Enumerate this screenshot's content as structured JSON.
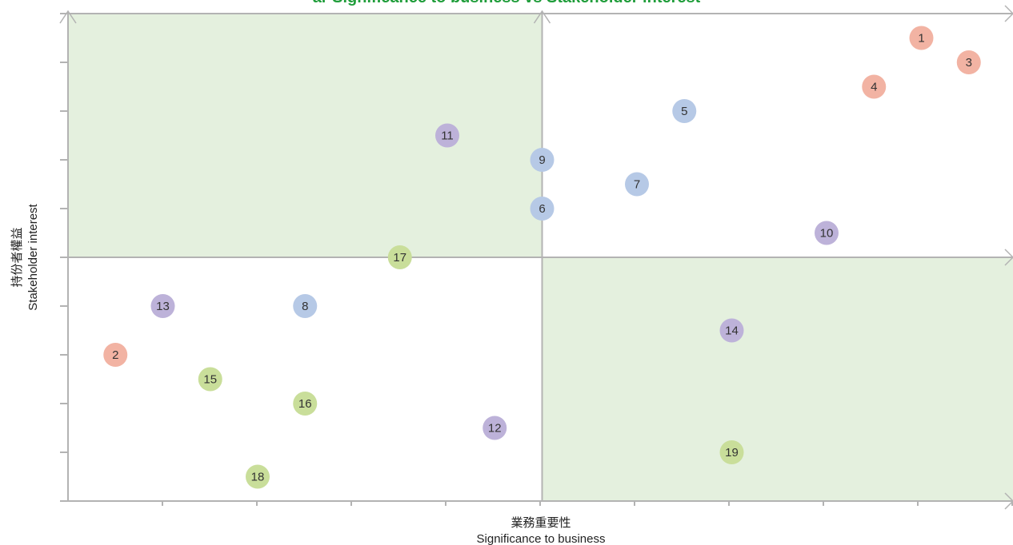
{
  "chart_data": {
    "type": "scatter",
    "title": "ar Significance to business vs Stakeholder interest",
    "xlabel": {
      "zh": "業務重要性",
      "en": "Significance to business"
    },
    "ylabel": {
      "zh": "持份者權益",
      "en": "Stakeholder interest"
    },
    "xlim": [
      0,
      20
    ],
    "ylim": [
      0,
      20
    ],
    "grid": false,
    "quadrant_dividers": {
      "x": 10,
      "y": 10
    },
    "highlighted_quadrants": [
      "top-left",
      "bottom-right"
    ],
    "points": [
      {
        "label": "1",
        "x": 18,
        "y": 19,
        "group": "red"
      },
      {
        "label": "2",
        "x": 1,
        "y": 6,
        "group": "red"
      },
      {
        "label": "3",
        "x": 19,
        "y": 18,
        "group": "red"
      },
      {
        "label": "4",
        "x": 17,
        "y": 17,
        "group": "red"
      },
      {
        "label": "5",
        "x": 13,
        "y": 16,
        "group": "blue"
      },
      {
        "label": "6",
        "x": 10,
        "y": 12,
        "group": "blue"
      },
      {
        "label": "7",
        "x": 12,
        "y": 13,
        "group": "blue"
      },
      {
        "label": "8",
        "x": 5,
        "y": 8,
        "group": "blue"
      },
      {
        "label": "9",
        "x": 10,
        "y": 14,
        "group": "blue"
      },
      {
        "label": "10",
        "x": 16,
        "y": 11,
        "group": "purple"
      },
      {
        "label": "11",
        "x": 8,
        "y": 15,
        "group": "purple"
      },
      {
        "label": "12",
        "x": 9,
        "y": 3,
        "group": "purple"
      },
      {
        "label": "13",
        "x": 2,
        "y": 8,
        "group": "purple"
      },
      {
        "label": "14",
        "x": 14,
        "y": 7,
        "group": "purple"
      },
      {
        "label": "15",
        "x": 3,
        "y": 5,
        "group": "green"
      },
      {
        "label": "16",
        "x": 5,
        "y": 4,
        "group": "green"
      },
      {
        "label": "17",
        "x": 7,
        "y": 10,
        "group": "green"
      },
      {
        "label": "18",
        "x": 4,
        "y": 1,
        "group": "green"
      },
      {
        "label": "19",
        "x": 14,
        "y": 2,
        "group": "green"
      }
    ]
  },
  "colors": {
    "title": "#1f9d3a",
    "axis": "#b3b3b3",
    "quadrant_fill": "#e4f0de",
    "label_text": "#333333",
    "red": "#f2b3a3",
    "blue": "#b6c9e6",
    "purple": "#bdb2d9",
    "green": "#c9de9a"
  }
}
